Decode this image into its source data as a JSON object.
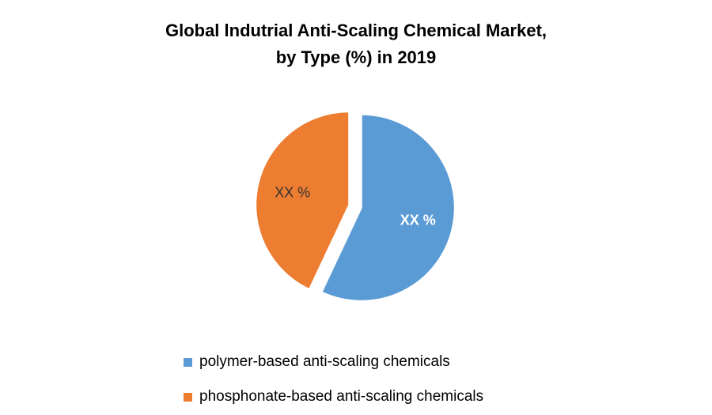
{
  "chart_data": {
    "type": "pie",
    "title_line1": "Global lndutrial Anti-Scaling Chemical Market,",
    "title_line2": "by Type (%) in 2019",
    "slices": [
      {
        "name": "polymer-based anti-scaling chemicals",
        "value": 57,
        "label": "XX %",
        "color": "#5B9BD5",
        "label_color": "#FFFFFF"
      },
      {
        "name": "phosphonate-based anti-scaling chemicals",
        "value": 43,
        "label": "XX %",
        "color": "#ED7D31",
        "label_color": "#333333"
      }
    ],
    "legend_position": "bottom",
    "exploded": true
  }
}
